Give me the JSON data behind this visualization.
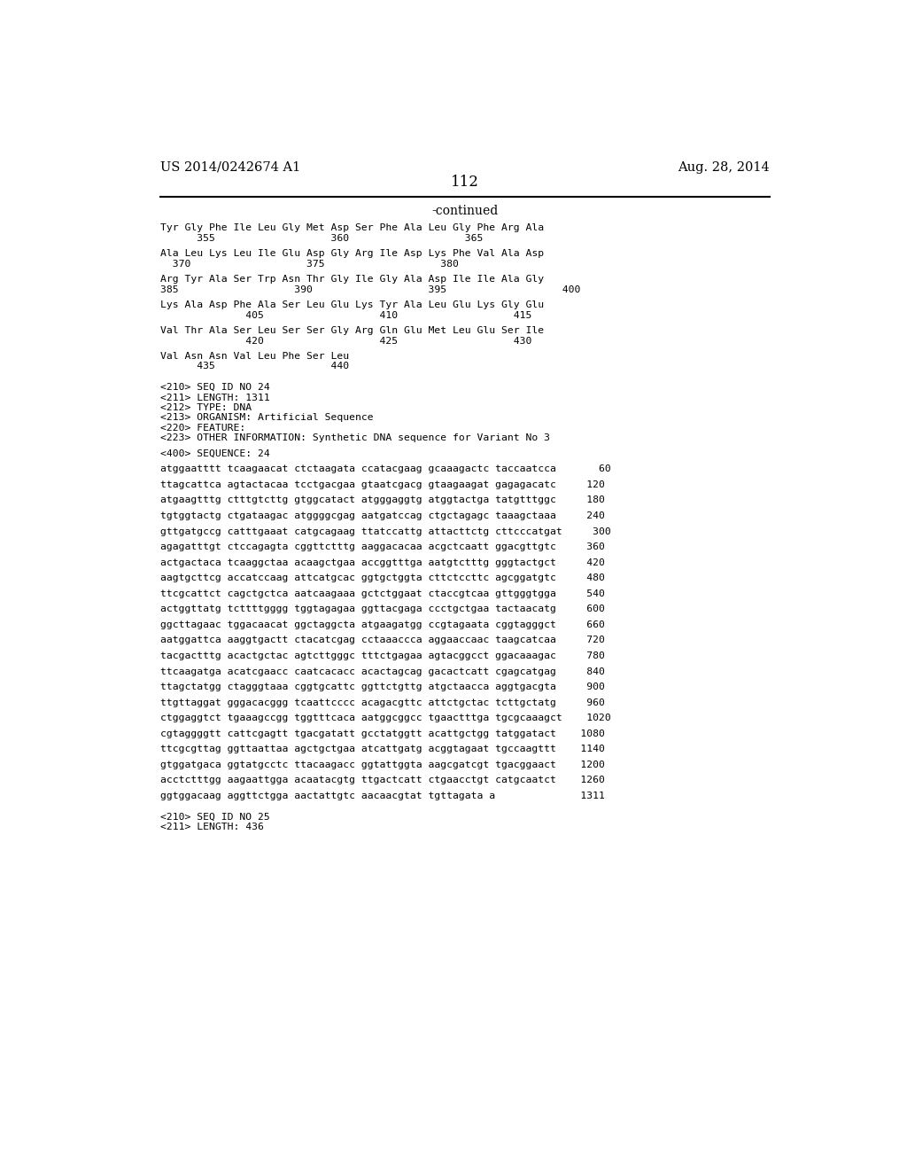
{
  "bg_color": "#ffffff",
  "left_header": "US 2014/0242674 A1",
  "right_header": "Aug. 28, 2014",
  "page_number": "112",
  "continued_text": "-continued",
  "body_lines": [
    {
      "text": "Tyr Gly Phe Ile Leu Gly Met Asp Ser Phe Ala Leu Gly Phe Arg Ala",
      "type": "seq"
    },
    {
      "text": "      355                   360                   365",
      "type": "num"
    },
    {
      "text": "",
      "type": "blank"
    },
    {
      "text": "Ala Leu Lys Leu Ile Glu Asp Gly Arg Ile Asp Lys Phe Val Ala Asp",
      "type": "seq"
    },
    {
      "text": "  370                   375                   380",
      "type": "num"
    },
    {
      "text": "",
      "type": "blank"
    },
    {
      "text": "Arg Tyr Ala Ser Trp Asn Thr Gly Ile Gly Ala Asp Ile Ile Ala Gly",
      "type": "seq"
    },
    {
      "text": "385                   390                   395                   400",
      "type": "num"
    },
    {
      "text": "",
      "type": "blank"
    },
    {
      "text": "Lys Ala Asp Phe Ala Ser Leu Glu Lys Tyr Ala Leu Glu Lys Gly Glu",
      "type": "seq"
    },
    {
      "text": "              405                   410                   415",
      "type": "num"
    },
    {
      "text": "",
      "type": "blank"
    },
    {
      "text": "Val Thr Ala Ser Leu Ser Ser Gly Arg Gln Glu Met Leu Glu Ser Ile",
      "type": "seq"
    },
    {
      "text": "              420                   425                   430",
      "type": "num"
    },
    {
      "text": "",
      "type": "blank"
    },
    {
      "text": "Val Asn Asn Val Leu Phe Ser Leu",
      "type": "seq"
    },
    {
      "text": "      435                   440",
      "type": "num"
    },
    {
      "text": "",
      "type": "blank"
    },
    {
      "text": "",
      "type": "blank"
    },
    {
      "text": "<210> SEQ ID NO 24",
      "type": "meta"
    },
    {
      "text": "<211> LENGTH: 1311",
      "type": "meta"
    },
    {
      "text": "<212> TYPE: DNA",
      "type": "meta"
    },
    {
      "text": "<213> ORGANISM: Artificial Sequence",
      "type": "meta"
    },
    {
      "text": "<220> FEATURE:",
      "type": "meta"
    },
    {
      "text": "<223> OTHER INFORMATION: Synthetic DNA sequence for Variant No 3",
      "type": "meta"
    },
    {
      "text": "",
      "type": "blank"
    },
    {
      "text": "<400> SEQUENCE: 24",
      "type": "meta"
    },
    {
      "text": "",
      "type": "blank"
    },
    {
      "text": "atggaatttt tcaagaacat ctctaagata ccatacgaag gcaaagactc taccaatcca       60",
      "type": "dna"
    },
    {
      "text": "",
      "type": "blank"
    },
    {
      "text": "ttagcattca agtactacaa tcctgacgaa gtaatcgacg gtaagaagat gagagacatc     120",
      "type": "dna"
    },
    {
      "text": "",
      "type": "blank"
    },
    {
      "text": "atgaagtttg ctttgtcttg gtggcatact atgggaggtg atggtactga tatgtttggc     180",
      "type": "dna"
    },
    {
      "text": "",
      "type": "blank"
    },
    {
      "text": "tgtggtactg ctgataagac atggggcgag aatgatccag ctgctagagc taaagctaaa     240",
      "type": "dna"
    },
    {
      "text": "",
      "type": "blank"
    },
    {
      "text": "gttgatgccg catttgaaat catgcagaag ttatccattg attacttctg cttcccatgat     300",
      "type": "dna"
    },
    {
      "text": "",
      "type": "blank"
    },
    {
      "text": "agagatttgt ctccagagta cggttctttg aaggacacaa acgctcaatt ggacgttgtc     360",
      "type": "dna"
    },
    {
      "text": "",
      "type": "blank"
    },
    {
      "text": "actgactaca tcaaggctaa acaagctgaa accggtttga aatgtctttg gggtactgct     420",
      "type": "dna"
    },
    {
      "text": "",
      "type": "blank"
    },
    {
      "text": "aagtgcttcg accatccaag attcatgcac ggtgctggta cttctccttc agcggatgtc     480",
      "type": "dna"
    },
    {
      "text": "",
      "type": "blank"
    },
    {
      "text": "ttcgcattct cagctgctca aatcaagaaa gctctggaat ctaccgtcaa gttgggtgga     540",
      "type": "dna"
    },
    {
      "text": "",
      "type": "blank"
    },
    {
      "text": "actggttatg tcttttgggg tggtagagaa ggttacgaga ccctgctgaa tactaacatg     600",
      "type": "dna"
    },
    {
      "text": "",
      "type": "blank"
    },
    {
      "text": "ggcttagaac tggacaacat ggctaggcta atgaagatgg ccgtagaata cggtagggct     660",
      "type": "dna"
    },
    {
      "text": "",
      "type": "blank"
    },
    {
      "text": "aatggattca aaggtgactt ctacatcgag cctaaaccca aggaaccaac taagcatcaa     720",
      "type": "dna"
    },
    {
      "text": "",
      "type": "blank"
    },
    {
      "text": "tacgactttg acactgctac agtcttgggc tttctgagaa agtacggcct ggacaaagac     780",
      "type": "dna"
    },
    {
      "text": "",
      "type": "blank"
    },
    {
      "text": "ttcaagatga acatcgaacc caatcacacc acactagcag gacactcatt cgagcatgag     840",
      "type": "dna"
    },
    {
      "text": "",
      "type": "blank"
    },
    {
      "text": "ttagctatgg ctagggtaaa cggtgcattc ggttctgttg atgctaacca aggtgacgta     900",
      "type": "dna"
    },
    {
      "text": "",
      "type": "blank"
    },
    {
      "text": "ttgttaggat gggacacggg tcaattcccc acagacgttc attctgctac tcttgctatg     960",
      "type": "dna"
    },
    {
      "text": "",
      "type": "blank"
    },
    {
      "text": "ctggaggtct tgaaagccgg tggtttcaca aatggcggcc tgaactttga tgcgcaaagct    1020",
      "type": "dna"
    },
    {
      "text": "",
      "type": "blank"
    },
    {
      "text": "cgtaggggtt cattcgagtt tgacgatatt gcctatggtt acattgctgg tatggatact    1080",
      "type": "dna"
    },
    {
      "text": "",
      "type": "blank"
    },
    {
      "text": "ttcgcgttag ggttaattaa agctgctgaa atcattgatg acggtagaat tgccaagttt    1140",
      "type": "dna"
    },
    {
      "text": "",
      "type": "blank"
    },
    {
      "text": "gtggatgaca ggtatgcctc ttacaagacc ggtattggta aagcgatcgt tgacggaact    1200",
      "type": "dna"
    },
    {
      "text": "",
      "type": "blank"
    },
    {
      "text": "acctctttgg aagaattgga acaatacgtg ttgactcatt ctgaacctgt catgcaatct    1260",
      "type": "dna"
    },
    {
      "text": "",
      "type": "blank"
    },
    {
      "text": "ggtggacaag aggttctgga aactattgtc aacaacgtat tgttagata a              1311",
      "type": "dna"
    },
    {
      "text": "",
      "type": "blank"
    },
    {
      "text": "",
      "type": "blank"
    },
    {
      "text": "<210> SEQ ID NO 25",
      "type": "meta"
    },
    {
      "text": "<211> LENGTH: 436",
      "type": "meta"
    }
  ],
  "font_size_header": 10.5,
  "font_size_page_num": 12,
  "font_size_continued": 10,
  "font_size_body": 8.2,
  "mono_font": "DejaVu Sans Mono",
  "serif_font": "DejaVu Serif"
}
